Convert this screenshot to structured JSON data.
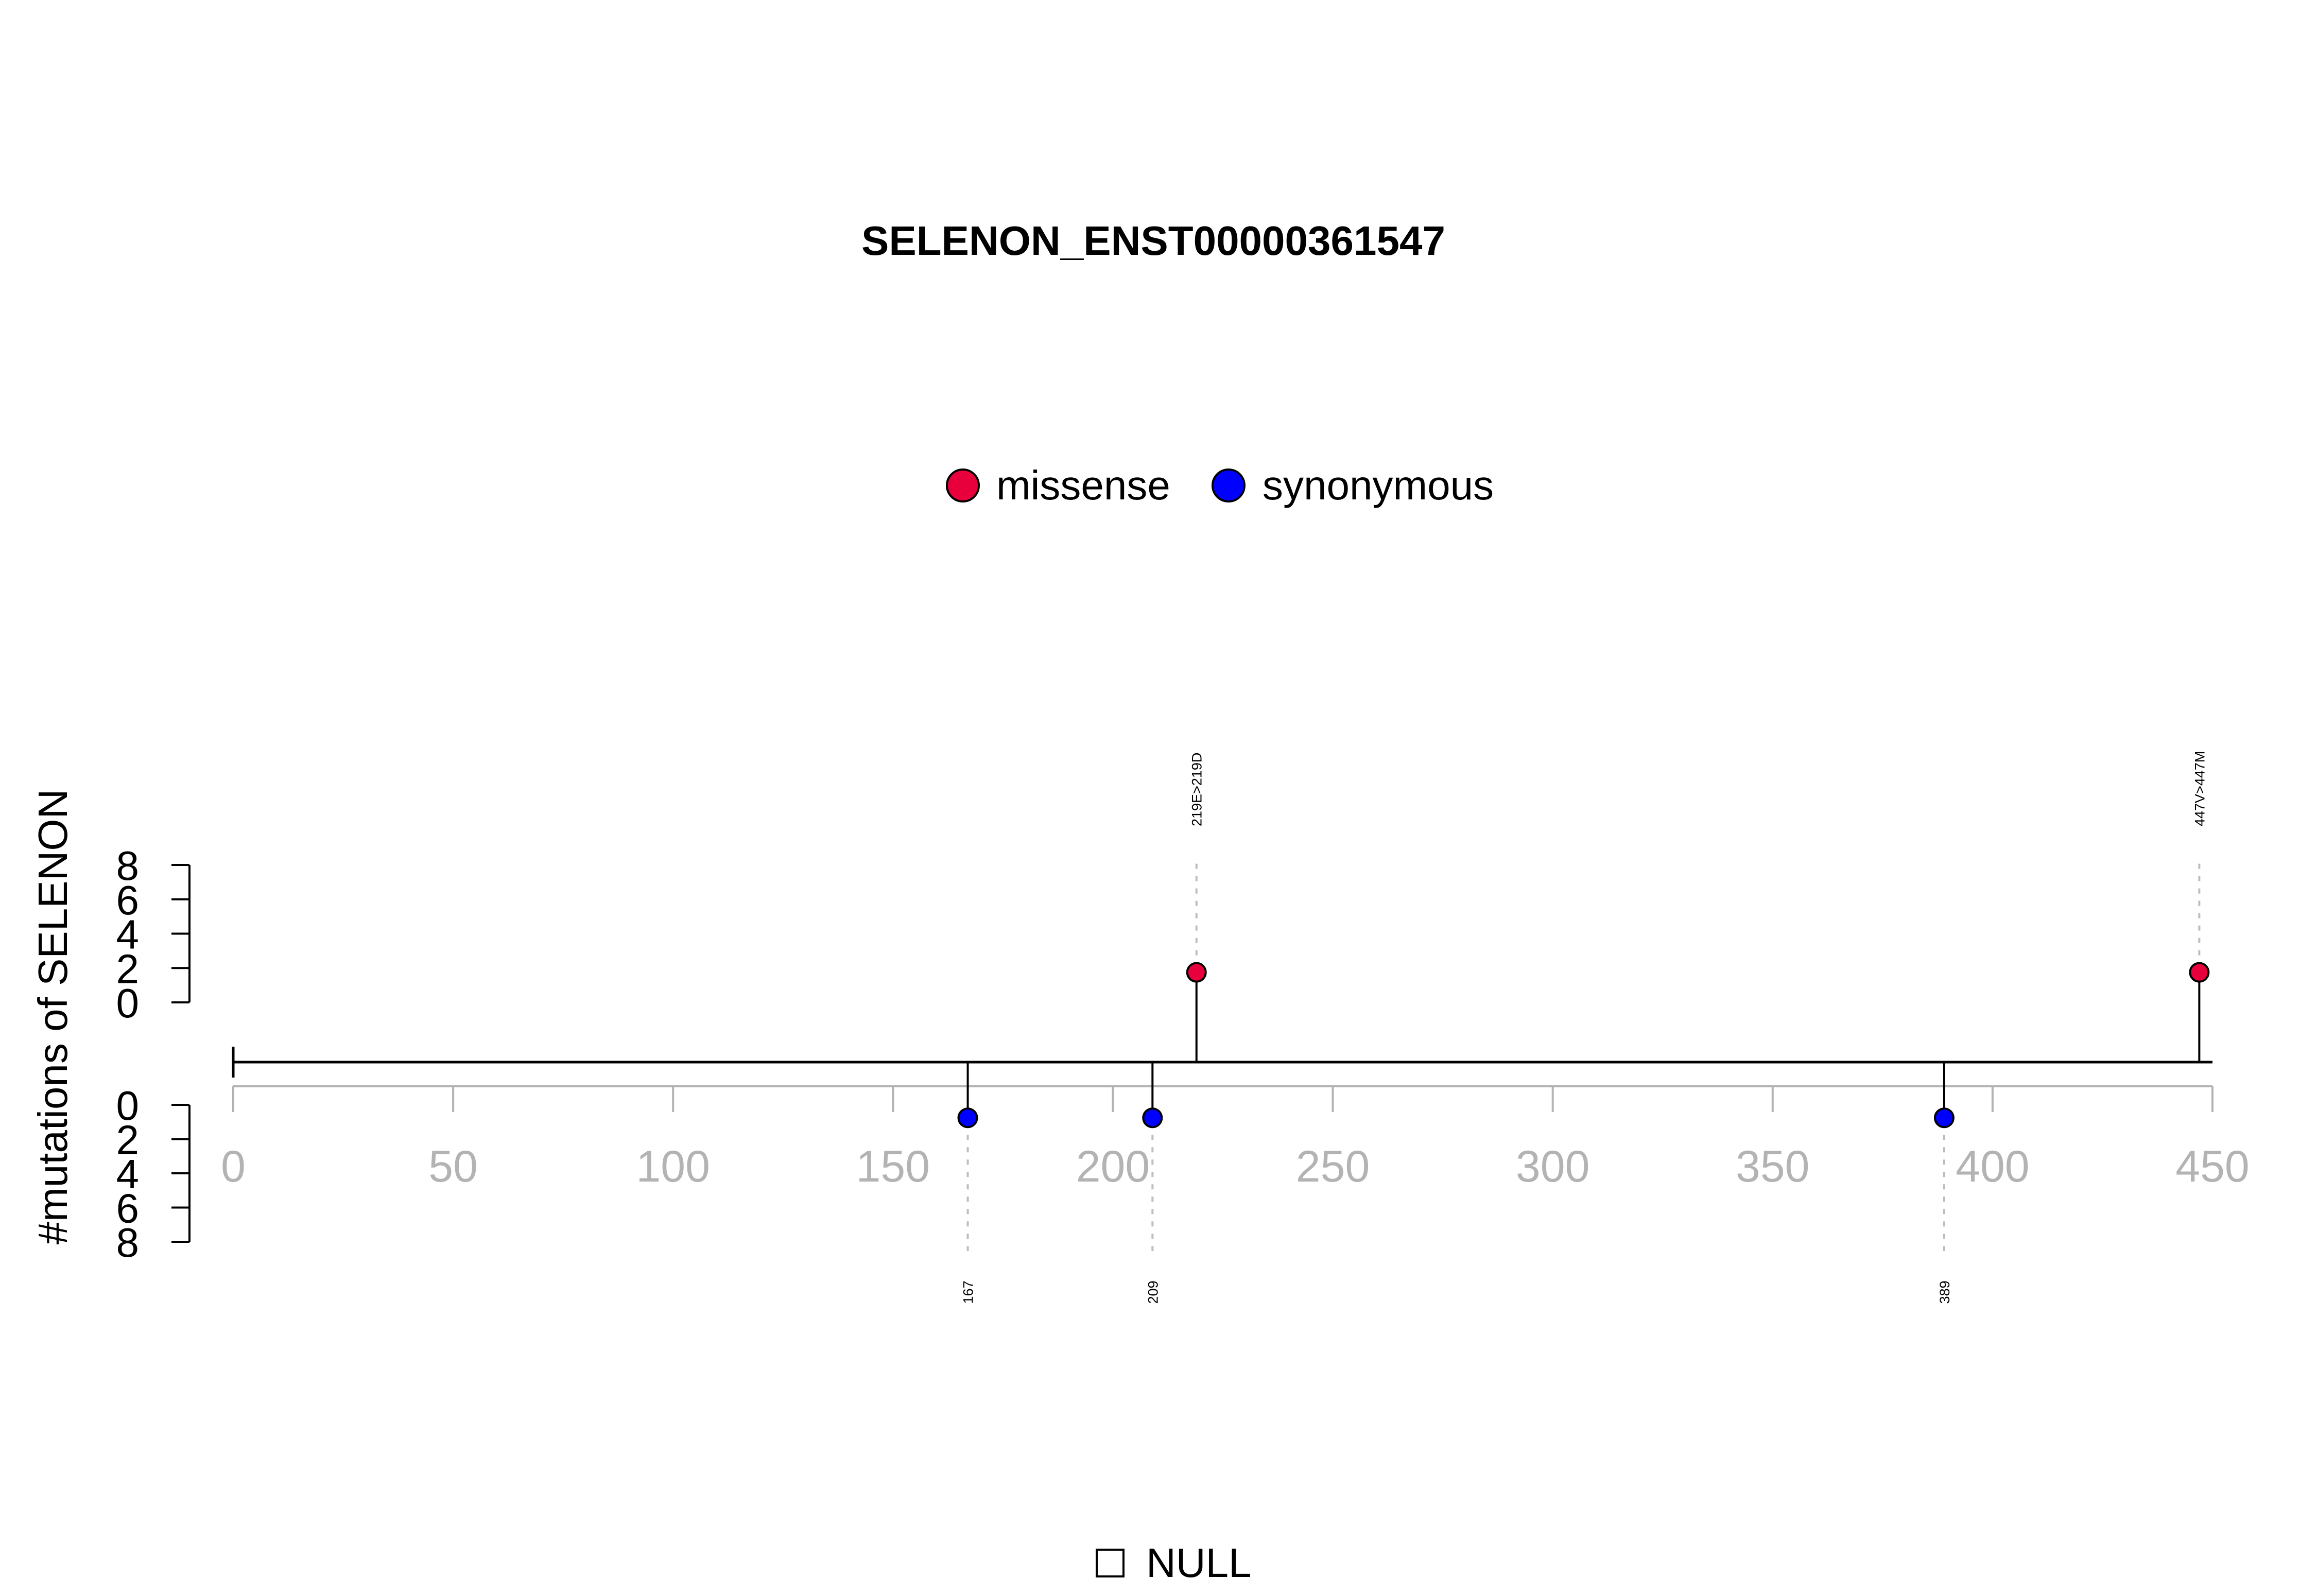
{
  "chart_data": {
    "type": "lollipop",
    "title": "SELENON_ENST00000361547",
    "ylabel": "#mutations of SELENON",
    "xlim": [
      0,
      450
    ],
    "x_ticks": [
      0,
      50,
      100,
      150,
      200,
      250,
      300,
      350,
      400,
      450
    ],
    "y_ticks": [
      0,
      2,
      4,
      6,
      8
    ],
    "ylim": [
      0,
      8
    ],
    "legend": {
      "position": "top-center",
      "entries": [
        {
          "name": "missense",
          "color": "#e8003c"
        },
        {
          "name": "synonymous",
          "color": "#0000ff"
        }
      ]
    },
    "mutations": [
      {
        "position": 219,
        "count": 1,
        "type": "missense",
        "side": "top",
        "label": "219E>219D"
      },
      {
        "position": 447,
        "count": 1,
        "type": "missense",
        "side": "top",
        "label": "447V>447M"
      },
      {
        "position": 167,
        "count": 1,
        "type": "synonymous",
        "side": "bottom",
        "label": "167"
      },
      {
        "position": 209,
        "count": 1,
        "type": "synonymous",
        "side": "bottom",
        "label": "209"
      },
      {
        "position": 389,
        "count": 1,
        "type": "synonymous",
        "side": "bottom",
        "label": "389"
      }
    ],
    "domain_legend": [
      {
        "name": "NULL",
        "color": "#ffffff"
      }
    ]
  }
}
